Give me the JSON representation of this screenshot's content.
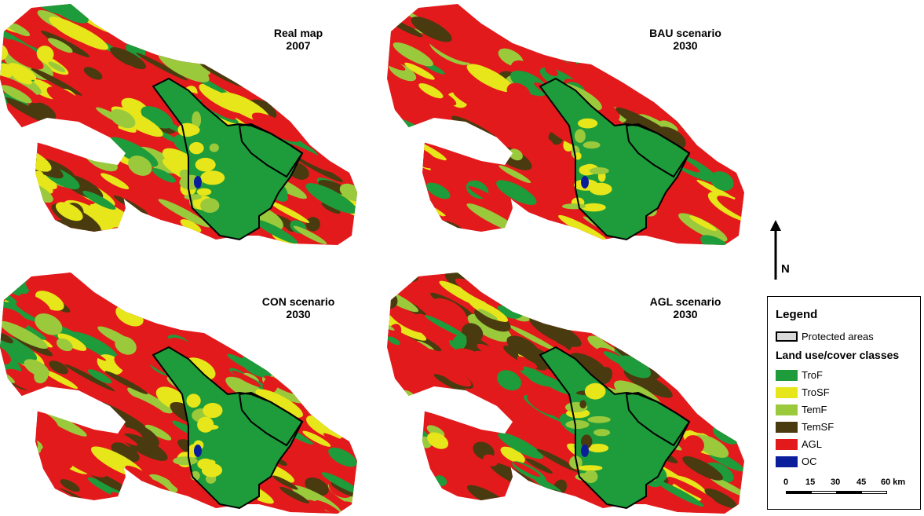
{
  "map": {
    "colors": {
      "TroF": "#1e9b3a",
      "TroSF": "#e6e61a",
      "TemF": "#9ac93c",
      "TemSF": "#4a3a10",
      "AGL": "#e31a1c",
      "OC": "#0a1e9c",
      "protected": "#000000"
    },
    "panels": [
      {
        "title_line1": "Real map",
        "title_line2": "2007",
        "scenario": "real"
      },
      {
        "title_line1": "BAU scenario",
        "title_line2": "2030",
        "scenario": "bau"
      },
      {
        "title_line1": "CON scenario",
        "title_line2": "2030",
        "scenario": "con"
      },
      {
        "title_line1": "AGL scenario",
        "title_line2": "2030",
        "scenario": "agl"
      }
    ]
  },
  "north_arrow": {
    "label": "N",
    "icon": "north-arrow-icon"
  },
  "legend": {
    "title": "Legend",
    "protected_areas_label": "Protected areas",
    "classes_title": "Land use/cover classes",
    "classes": [
      {
        "code": "TroF",
        "color": "#1e9b3a"
      },
      {
        "code": "TroSF",
        "color": "#e6e61a"
      },
      {
        "code": "TemF",
        "color": "#9ac93c"
      },
      {
        "code": "TemSF",
        "color": "#4a3a10"
      },
      {
        "code": "AGL",
        "color": "#e31a1c"
      },
      {
        "code": "OC",
        "color": "#0a1e9c"
      }
    ],
    "scale": {
      "ticks": [
        "0",
        "15",
        "30",
        "45"
      ],
      "last_tick": "60 km"
    }
  }
}
